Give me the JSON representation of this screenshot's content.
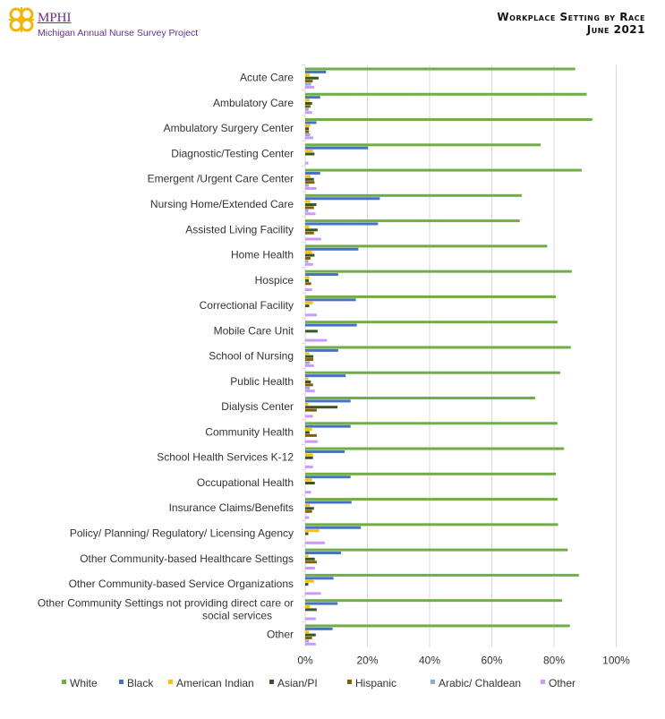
{
  "header": {
    "logo_name": "MPHI",
    "logo_subtitle": "Michigan Annual Nurse Survey Project",
    "title_line1": "Workplace Setting by Race",
    "title_line2": "June 2021"
  },
  "chart_data": {
    "type": "bar",
    "orientation": "horizontal",
    "title": "Workplace Setting by Race",
    "subtitle": "June 2021",
    "xlabel": "",
    "ylabel": "",
    "xlim": [
      0,
      100
    ],
    "x_ticks": [
      "0%",
      "20%",
      "40%",
      "60%",
      "80%",
      "100%"
    ],
    "grid": "vertical",
    "legend_position": "bottom",
    "categories": [
      "Acute Care",
      "Ambulatory Care",
      "Ambulatory Surgery Center",
      "Diagnostic/Testing Center",
      "Emergent /Urgent Care Center",
      "Nursing Home/Extended Care",
      "Assisted Living Facility",
      "Home Health",
      "Hospice",
      "Correctional Facility",
      "Mobile Care Unit",
      "School of Nursing",
      "Public Health",
      "Dialysis Center",
      "Community Health",
      "School Health Services K-12",
      "Occupational Health",
      "Insurance Claims/Benefits",
      "Policy/ Planning/ Regulatory/ Licensing Agency",
      "Other Community-based Healthcare Settings",
      "Other Community-based Service Organizations",
      "Other Community Settings not providing direct care or social services",
      "Other"
    ],
    "series": [
      {
        "name": "White",
        "color": "#70ad47",
        "values": [
          86.8,
          90.5,
          92.3,
          75.7,
          88.9,
          69.6,
          69.0,
          77.8,
          85.7,
          80.6,
          81.1,
          85.4,
          82.0,
          73.9,
          81.1,
          83.2,
          80.6,
          81.1,
          81.3,
          84.4,
          88.0,
          82.6,
          85.1
        ]
      },
      {
        "name": "Black",
        "color": "#4472c4",
        "values": [
          6.7,
          4.8,
          3.6,
          20.2,
          4.8,
          24.0,
          23.4,
          17.1,
          10.6,
          16.3,
          16.6,
          10.6,
          13.0,
          14.6,
          14.6,
          12.7,
          14.6,
          14.9,
          17.9,
          11.5,
          9.1,
          10.4,
          8.8
        ]
      },
      {
        "name": "American Indian",
        "color": "#ffc000",
        "values": [
          1.4,
          1.4,
          1.6,
          2.5,
          1.7,
          1.6,
          1.3,
          2.2,
          1.3,
          2.5,
          0,
          1.3,
          1.0,
          1.0,
          2.2,
          2.5,
          2.2,
          1.5,
          4.5,
          1.0,
          2.8,
          1.5,
          1.2
        ]
      },
      {
        "name": "Asian/PI",
        "color": "#375623",
        "values": [
          4.3,
          2.2,
          1.2,
          3.0,
          2.8,
          3.6,
          4.0,
          3.0,
          1.2,
          1.3,
          4.0,
          2.6,
          1.8,
          10.4,
          1.4,
          2.5,
          3.1,
          2.8,
          1.0,
          3.1,
          1.0,
          3.7,
          3.4
        ]
      },
      {
        "name": "Hispanic",
        "color": "#806000",
        "values": [
          2.4,
          1.7,
          1.2,
          0,
          3.0,
          2.8,
          2.8,
          1.7,
          1.9,
          0,
          0,
          2.6,
          2.5,
          3.7,
          3.7,
          0,
          0,
          2.2,
          0,
          3.7,
          0,
          0,
          2.2
        ]
      },
      {
        "name": "Arabic/ Chaldean",
        "color": "#8faadc",
        "values": [
          1.9,
          1.1,
          1.6,
          0,
          1.2,
          1.0,
          0,
          1.0,
          0,
          0,
          0,
          1.5,
          1.5,
          0,
          0,
          0,
          0,
          0,
          0,
          0,
          0,
          0,
          1.2
        ]
      },
      {
        "name": "Other",
        "color": "#cc99ff",
        "values": [
          2.9,
          2.2,
          2.6,
          1.0,
          3.6,
          3.3,
          5.1,
          2.5,
          2.2,
          3.7,
          7.0,
          2.8,
          3.1,
          2.5,
          4.0,
          2.5,
          1.9,
          1.2,
          6.3,
          3.1,
          5.1,
          3.4,
          3.4
        ]
      }
    ]
  }
}
